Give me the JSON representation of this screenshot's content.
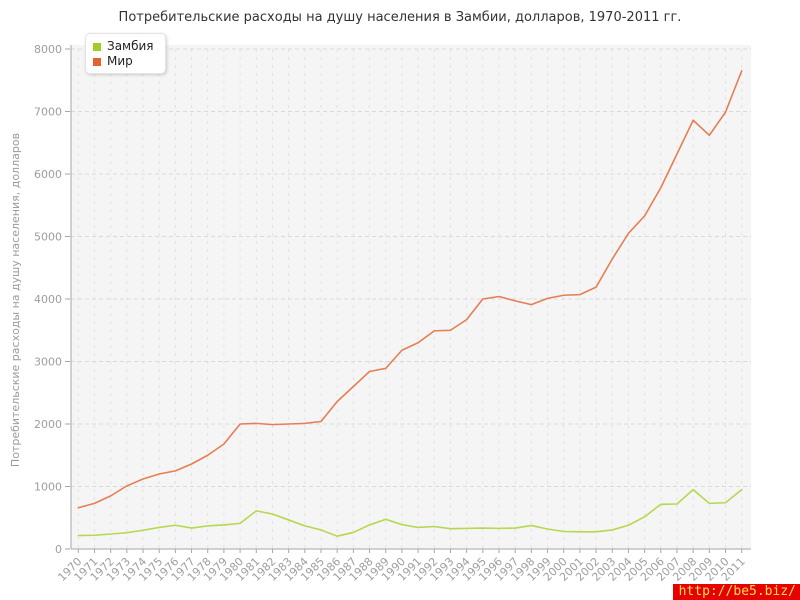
{
  "title": "Потребительские расходы на душу населения в Замбии, долларов, 1970-2011 гг.",
  "watermark": {
    "text": "http://be5.biz/",
    "bg": "#e60000",
    "color": "#ffe14d"
  },
  "axis": {
    "tick_color": "#9e9e9e",
    "line_color": "#a6a6a6"
  },
  "chart_data": {
    "type": "line",
    "title": "Потребительские расходы на душу населения в Замбии, долларов, 1970-2011 гг.",
    "xlabel": "",
    "ylabel": "Потребительские расходы на душу населения, долларов",
    "ylim": [
      0,
      8000
    ],
    "ytick_step": 1000,
    "grid": true,
    "legend_position": "top-left",
    "legend": {
      "items": [
        {
          "label": "Замбия",
          "swatch": "#a2cc28"
        },
        {
          "label": "Мир",
          "swatch": "#e2622e"
        }
      ]
    },
    "x": [
      1970,
      1971,
      1972,
      1973,
      1974,
      1975,
      1976,
      1977,
      1978,
      1979,
      1980,
      1981,
      1982,
      1983,
      1984,
      1985,
      1986,
      1987,
      1988,
      1989,
      1990,
      1991,
      1992,
      1993,
      1994,
      1995,
      1996,
      1997,
      1998,
      1999,
      2000,
      2001,
      2002,
      2003,
      2004,
      2005,
      2006,
      2007,
      2008,
      2009,
      2010,
      2011
    ],
    "series": [
      {
        "name": "Замбия",
        "color": "#b5d84f",
        "values": [
          215,
          220,
          240,
          260,
          300,
          345,
          380,
          335,
          370,
          385,
          410,
          610,
          560,
          465,
          370,
          305,
          205,
          265,
          385,
          475,
          390,
          345,
          360,
          325,
          330,
          335,
          330,
          335,
          375,
          320,
          280,
          275,
          275,
          305,
          380,
          515,
          715,
          720,
          950,
          730,
          740,
          950
        ]
      },
      {
        "name": "Мир",
        "color": "#e57e52",
        "values": [
          660,
          730,
          850,
          1010,
          1120,
          1200,
          1250,
          1360,
          1500,
          1680,
          2000,
          2010,
          1990,
          2000,
          2010,
          2040,
          2360,
          2600,
          2840,
          2890,
          3180,
          3300,
          3490,
          3500,
          3670,
          4000,
          4040,
          3970,
          3910,
          4010,
          4060,
          4070,
          4190,
          4640,
          5050,
          5330,
          5780,
          6320,
          6860,
          6620,
          6990,
          7650
        ]
      }
    ]
  }
}
